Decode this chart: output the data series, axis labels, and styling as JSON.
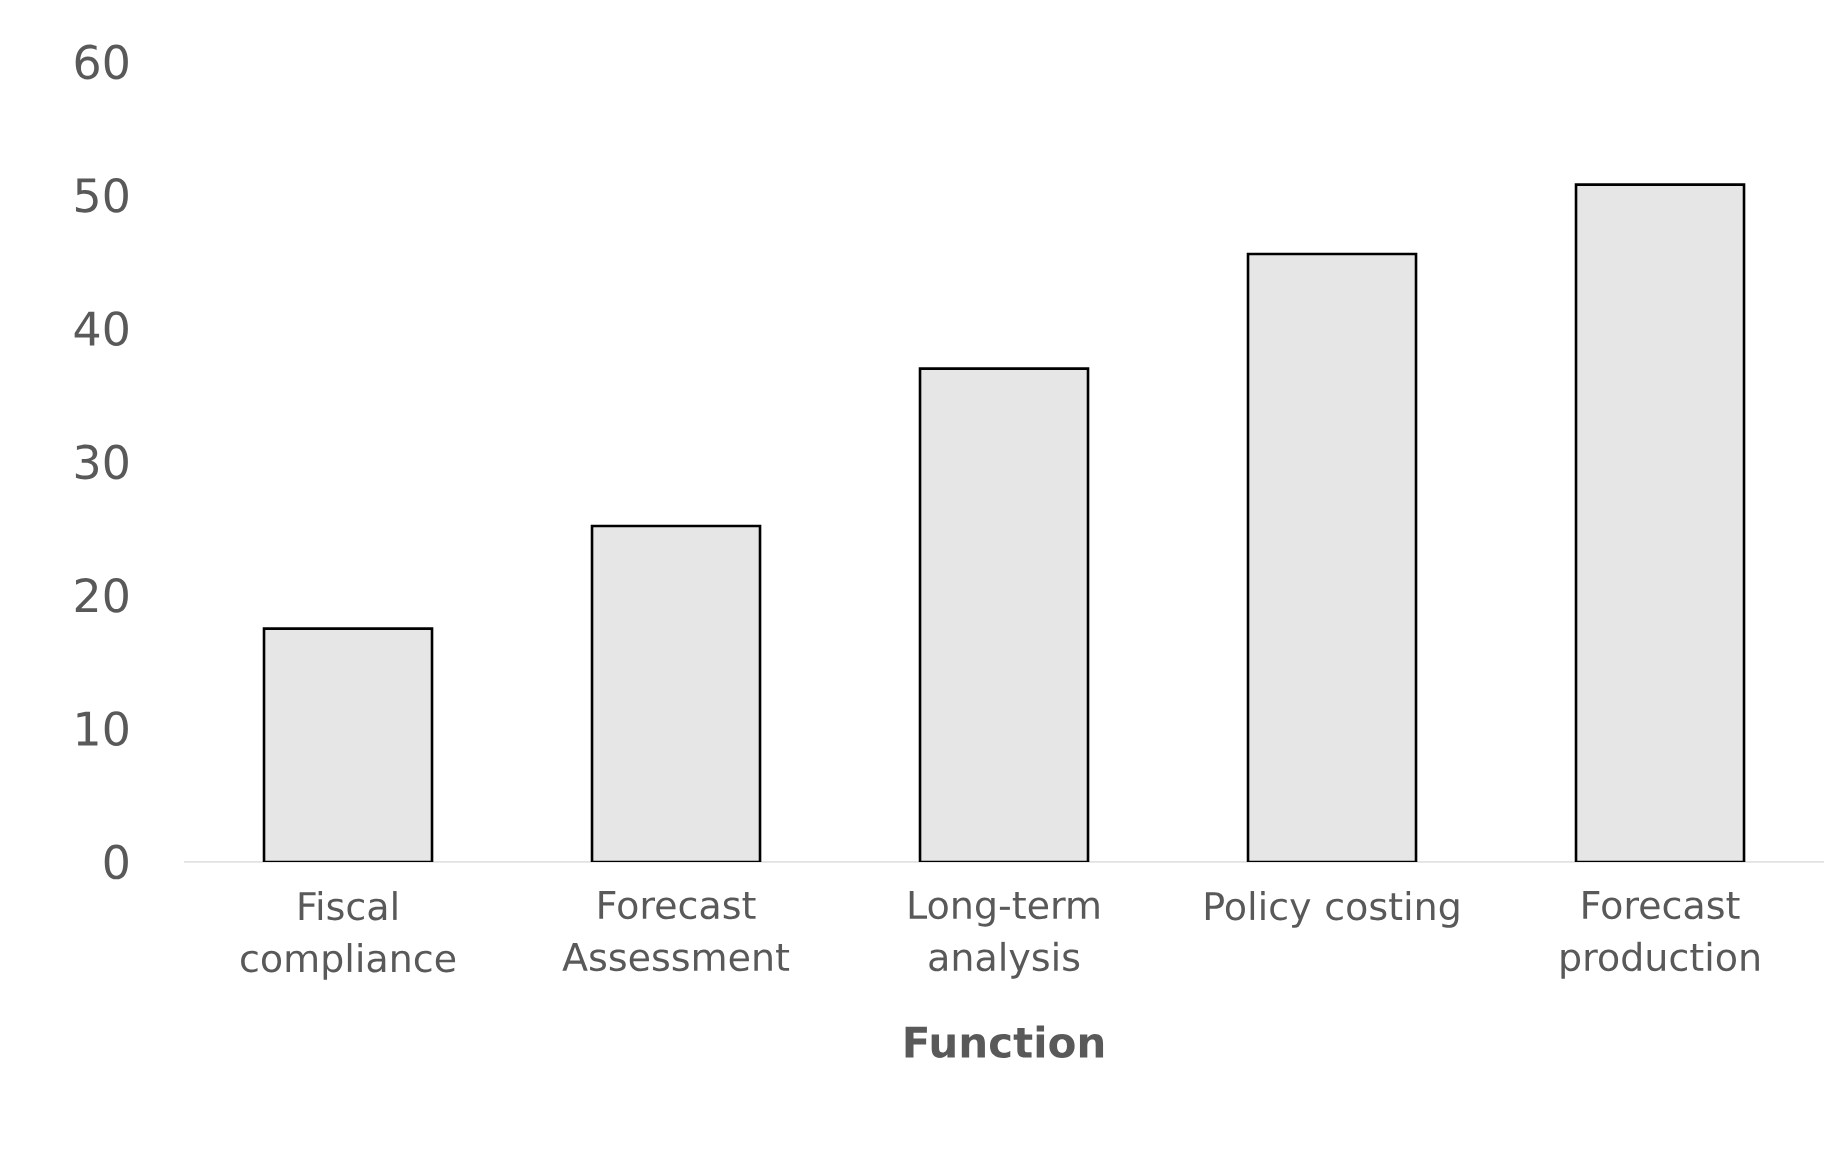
{
  "chart_data": {
    "type": "bar",
    "xlabel": "Function",
    "categories": [
      "Fiscal compliance",
      "Forecast Assessment",
      "Long-term analysis",
      "Policy costing",
      "Forecast production"
    ],
    "values": [
      17.5,
      25.2,
      37.0,
      45.6,
      50.8
    ],
    "color": "#e7e6e6",
    "ylim": [
      0,
      60
    ],
    "yticks": [
      0,
      10,
      20,
      30,
      40,
      50,
      60
    ]
  }
}
